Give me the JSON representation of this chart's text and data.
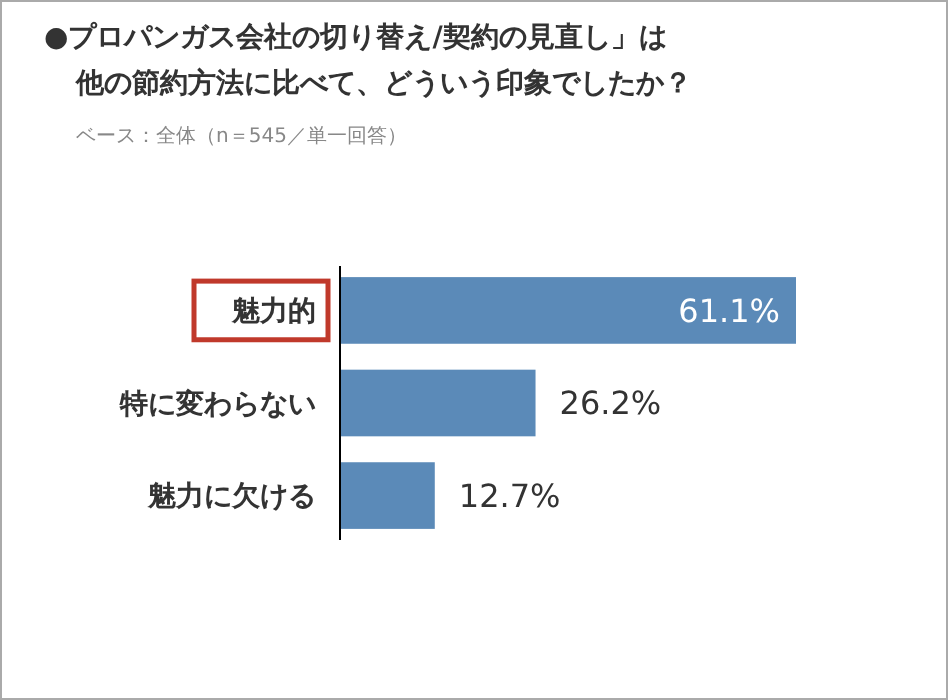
{
  "chart_data": {
    "type": "bar",
    "orientation": "horizontal",
    "title": "●プロパンガス会社の切り替え/契約の見直し」は他の節約方法に比べて、どういう印象でしたか？",
    "subtitle": "ベース：全体（n＝545／単一回答）",
    "categories": [
      "魅力的",
      "特に変わらない",
      "魅力に欠ける"
    ],
    "values": [
      61.1,
      26.2,
      12.7
    ],
    "value_labels": [
      "61.1%",
      "26.2%",
      "12.7%"
    ],
    "color": "#5b8ab8"
  }
}
